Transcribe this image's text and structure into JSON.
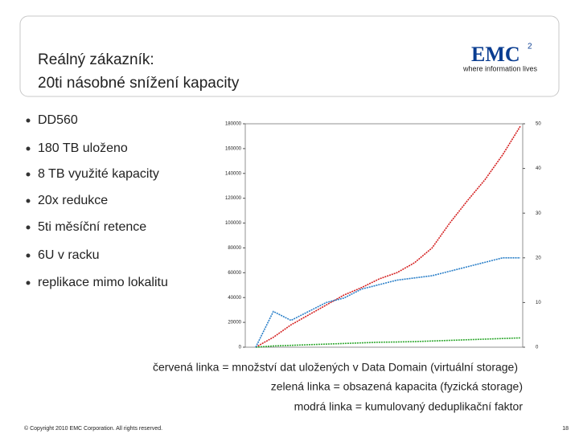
{
  "header": {
    "title": [
      "Reálný zákazník:",
      "20ti násobné snížení kapacity"
    ],
    "logo": "EMC",
    "logo_sup": "2",
    "tagline": "where information lives"
  },
  "bullets": [
    "DD560",
    "180 TB uloženo",
    "8 TB využité kapacity",
    "20x redukce",
    "5ti měsíční retence",
    "6U v racku",
    "replikace mimo lokalitu"
  ],
  "chart_data": {
    "type": "line",
    "categories": [
      null,
      null,
      null,
      null,
      null,
      null,
      null,
      null,
      null,
      null,
      null,
      null,
      null,
      null,
      null,
      null
    ],
    "series": [
      {
        "color": "#d42020",
        "values": [
          0,
          8000,
          18000,
          26000,
          34000,
          42000,
          48000,
          55000,
          60000,
          68000,
          80000,
          100000,
          118000,
          135000,
          155000,
          178000
        ]
      },
      {
        "color": "#2fa82f",
        "values": [
          0,
          1000,
          1500,
          2000,
          2500,
          3000,
          3500,
          4000,
          4200,
          4500,
          5000,
          5500,
          6000,
          6500,
          7000,
          7500
        ]
      },
      {
        "color": "#2a7fc8",
        "axis": "y2",
        "values": [
          0,
          8,
          6,
          8,
          10,
          11,
          13,
          14,
          15,
          15.5,
          16,
          17,
          18,
          19,
          20,
          20
        ]
      }
    ],
    "ylim": [
      0,
      180000
    ],
    "yticks": [
      0,
      20000,
      40000,
      60000,
      80000,
      100000,
      120000,
      140000,
      160000,
      180000
    ],
    "y2lim": [
      0,
      50
    ],
    "y2ticks": [
      0,
      10,
      20,
      30,
      40,
      50
    ],
    "grid": false
  },
  "captions": [
    "červená linka = množství dat uložených v Data Domain (virtuální storage)",
    "zelená linka = obsazená kapacita (fyzická storage)",
    "modrá linka = kumulovaný deduplikační faktor"
  ],
  "footer": {
    "copyright": "© Copyright 2010 EMC Corporation. All rights reserved.",
    "page": "18"
  }
}
